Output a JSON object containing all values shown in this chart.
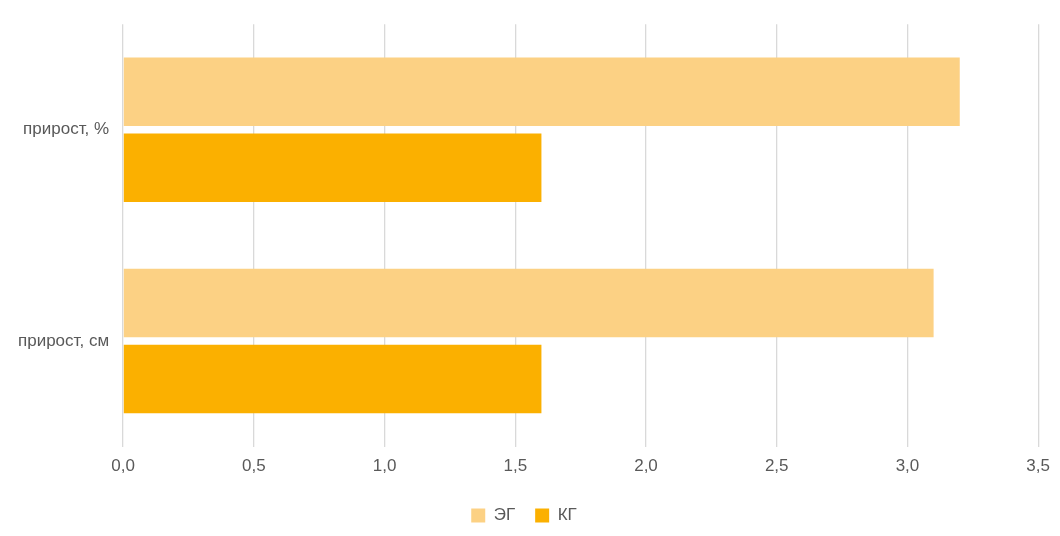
{
  "chart_data": {
    "type": "bar",
    "orientation": "horizontal",
    "categories": [
      "прирост, %",
      "прирост, см"
    ],
    "series": [
      {
        "name": "ЭГ",
        "color": "#fcd184",
        "values": [
          3.2,
          3.1
        ]
      },
      {
        "name": "КГ",
        "color": "#fbb000",
        "values": [
          1.6,
          1.6
        ]
      }
    ],
    "xlim": [
      0,
      3.5
    ],
    "xticks": [
      {
        "value": 0,
        "label": "0,0"
      },
      {
        "value": 0.5,
        "label": "0,5"
      },
      {
        "value": 1,
        "label": "1,0"
      },
      {
        "value": 1.5,
        "label": "1,5"
      },
      {
        "value": 2,
        "label": "2,0"
      },
      {
        "value": 2.5,
        "label": "2,5"
      },
      {
        "value": 3,
        "label": "3,0"
      },
      {
        "value": 3.5,
        "label": "3,5"
      }
    ],
    "grid": "x",
    "legend": "bottom"
  }
}
